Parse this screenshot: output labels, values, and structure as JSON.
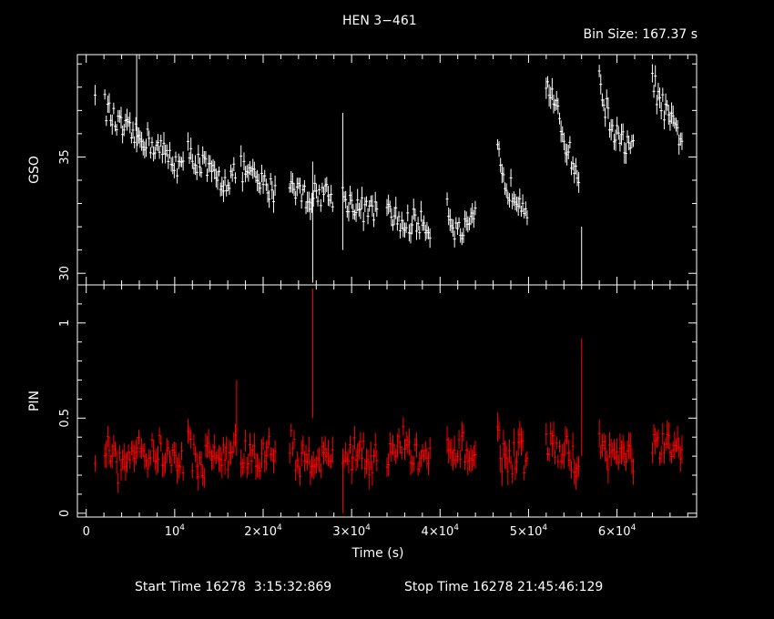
{
  "title": "HEN 3−461",
  "bin_size": "Bin Size: 167.37 s",
  "footer": {
    "start": "Start Time 16278  3:15:32:869",
    "stop": "Stop Time 16278 21:45:46:129"
  },
  "colors": {
    "gso": "#ffffff",
    "pin": "#ff0000",
    "axes": "#ffffff",
    "background": "#000000"
  },
  "chart_data": {
    "type": "scatter",
    "xlabel": "Time (s)",
    "xlim": [
      -1000,
      69000
    ],
    "x_ticks": [
      {
        "value": 0,
        "label": "0"
      },
      {
        "value": 10000,
        "label": "10",
        "sup": "4"
      },
      {
        "value": 20000,
        "label": "2×10",
        "sup": "4"
      },
      {
        "value": 30000,
        "label": "3×10",
        "sup": "4"
      },
      {
        "value": 40000,
        "label": "4×10",
        "sup": "4"
      },
      {
        "value": 50000,
        "label": "5×10",
        "sup": "4"
      },
      {
        "value": 60000,
        "label": "6×10",
        "sup": "4"
      }
    ],
    "panels": [
      {
        "name": "GSO",
        "ylabel": "GSO",
        "ylim": [
          29.5,
          39.4
        ],
        "yticks": [
          {
            "value": 30,
            "label": "30"
          },
          {
            "value": 35,
            "label": "35"
          }
        ],
        "color": "#ffffff",
        "segments": [
          {
            "x": [
              1000,
              1000
            ],
            "y": [
              38.1,
              37.6
            ]
          },
          {
            "x": [
              2100,
              3000,
              4000,
              5000,
              6000
            ],
            "y": [
              37.2,
              36.6,
              36.2,
              36.0,
              35.8
            ]
          },
          {
            "x": [
              6100,
              7000,
              8000,
              9000,
              10000,
              11000
            ],
            "y": [
              35.9,
              35.7,
              35.4,
              35.1,
              34.8,
              34.5
            ]
          },
          {
            "x": [
              11500,
              12000,
              13000,
              14000,
              15000,
              16000,
              17000
            ],
            "y": [
              35.2,
              35.0,
              34.7,
              34.3,
              34.0,
              34.0,
              34.4
            ]
          },
          {
            "x": [
              17500,
              18500,
              19500,
              20500,
              21500
            ],
            "y": [
              34.5,
              34.2,
              33.9,
              33.7,
              33.5
            ]
          },
          {
            "x": [
              23000,
              24000,
              25000,
              26000,
              27000,
              28000
            ],
            "y": [
              34.0,
              33.6,
              33.2,
              33.4,
              33.5,
              33.3
            ]
          },
          {
            "x": [
              29000,
              30000,
              31000,
              32000,
              33000
            ],
            "y": [
              33.3,
              33.0,
              32.8,
              32.6,
              32.9
            ]
          },
          {
            "x": [
              34000,
              35000,
              36000,
              37000,
              38000,
              39000
            ],
            "y": [
              32.5,
              32.4,
              32.0,
              32.3,
              32.1,
              32.0
            ]
          },
          {
            "x": [
              40800,
              41400,
              42000,
              42800,
              43500,
              44000
            ],
            "y": [
              33.0,
              32.2,
              31.7,
              31.8,
              32.0,
              32.3
            ]
          },
          {
            "x": [
              46500,
              47000,
              48000,
              49000,
              50000
            ],
            "y": [
              35.5,
              33.9,
              33.6,
              33.3,
              32.8
            ]
          },
          {
            "x": [
              52000,
              52700,
              53500,
              54300,
              55100,
              55700
            ],
            "y": [
              38.4,
              37.5,
              36.5,
              35.5,
              34.7,
              34.1
            ]
          },
          {
            "x": [
              58000,
              58700,
              59500,
              60300,
              61000,
              62000
            ],
            "y": [
              38.2,
              37.2,
              36.2,
              35.7,
              35.5,
              35.2
            ]
          },
          {
            "x": [
              64000,
              64700,
              65500,
              66300,
              67000,
              67500
            ],
            "y": [
              38.5,
              37.5,
              36.9,
              36.3,
              36.0,
              35.8
            ]
          }
        ],
        "spikes": [
          {
            "x": 5700,
            "ylow": 35.2,
            "yhigh": 39.4
          },
          {
            "x": 25600,
            "ylow": 29.6,
            "yhigh": 34.8
          },
          {
            "x": 29000,
            "ylow": 31.0,
            "yhigh": 36.9
          },
          {
            "x": 56000,
            "ylow": 29.6,
            "yhigh": 32.0
          }
        ]
      },
      {
        "name": "PIN",
        "ylabel": "PIN",
        "ylim": [
          -0.02,
          1.2
        ],
        "yticks": [
          {
            "value": 0,
            "label": "0"
          },
          {
            "value": 0.5,
            "label": "0.5"
          },
          {
            "value": 1,
            "label": "1"
          }
        ],
        "color": "#ff0000",
        "segments": [
          {
            "x": [
              1000,
              1000
            ],
            "y": [
              0.23,
              0.23
            ]
          },
          {
            "x": [
              2100,
              3000,
              4000,
              5000,
              6000
            ],
            "y": [
              0.35,
              0.28,
              0.22,
              0.33,
              0.4
            ]
          },
          {
            "x": [
              6100,
              7000,
              8000,
              9000,
              10000,
              11000
            ],
            "y": [
              0.37,
              0.28,
              0.34,
              0.3,
              0.27,
              0.29
            ]
          },
          {
            "x": [
              11500,
              12000,
              13000,
              14000,
              15000,
              16000,
              17000
            ],
            "y": [
              0.4,
              0.3,
              0.24,
              0.33,
              0.3,
              0.28,
              0.39
            ]
          },
          {
            "x": [
              17500,
              18500,
              19500,
              20500,
              21500
            ],
            "y": [
              0.29,
              0.31,
              0.26,
              0.34,
              0.3
            ]
          },
          {
            "x": [
              23000,
              24000,
              25000,
              26000,
              27000,
              28000
            ],
            "y": [
              0.4,
              0.25,
              0.3,
              0.3,
              0.28,
              0.32
            ]
          },
          {
            "x": [
              29000,
              30000,
              31000,
              32000,
              33000
            ],
            "y": [
              0.32,
              0.29,
              0.36,
              0.27,
              0.33
            ]
          },
          {
            "x": [
              34000,
              35000,
              36000,
              37000,
              38000,
              39000
            ],
            "y": [
              0.3,
              0.31,
              0.39,
              0.28,
              0.31,
              0.26
            ]
          },
          {
            "x": [
              40800,
              41400,
              42000,
              42800,
              43500,
              44000
            ],
            "y": [
              0.32,
              0.28,
              0.3,
              0.35,
              0.3,
              0.27
            ]
          },
          {
            "x": [
              46500,
              47000,
              48000,
              49000,
              50000
            ],
            "y": [
              0.42,
              0.3,
              0.28,
              0.33,
              0.26
            ]
          },
          {
            "x": [
              52000,
              52700,
              53500,
              54300,
              55100,
              55700
            ],
            "y": [
              0.35,
              0.36,
              0.31,
              0.33,
              0.28,
              0.27
            ]
          },
          {
            "x": [
              58000,
              58700,
              59500,
              60300,
              61000,
              62000
            ],
            "y": [
              0.35,
              0.31,
              0.31,
              0.31,
              0.3,
              0.29
            ]
          },
          {
            "x": [
              64000,
              64700,
              65500,
              66300,
              67000,
              67500
            ],
            "y": [
              0.36,
              0.33,
              0.34,
              0.33,
              0.33,
              0.31
            ]
          }
        ],
        "spikes": [
          {
            "x": 17000,
            "ylow": 0.3,
            "yhigh": 0.7
          },
          {
            "x": 25600,
            "ylow": 0.5,
            "yhigh": 1.18
          },
          {
            "x": 29000,
            "ylow": 0.0,
            "yhigh": 0.31
          },
          {
            "x": 56000,
            "ylow": 0.3,
            "yhigh": 0.92
          }
        ]
      }
    ]
  }
}
